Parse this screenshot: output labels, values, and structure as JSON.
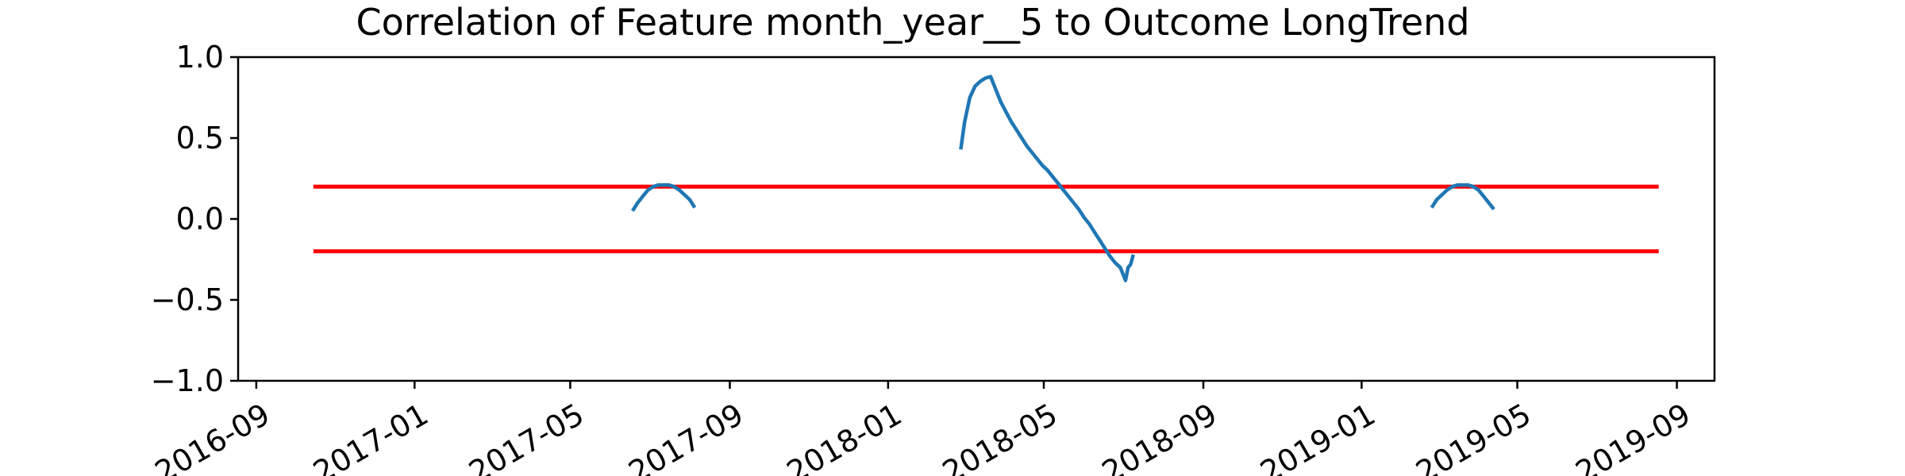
{
  "chart_data": {
    "type": "line",
    "title": "Correlation of Feature month_year__5 to Outcome LongTrend",
    "xlabel": "",
    "ylabel": "",
    "xlim": [
      "2016-08-18",
      "2019-09-30"
    ],
    "ylim": [
      -1.0,
      1.0
    ],
    "grid": false,
    "x_ticks": [
      "2016-09-01",
      "2017-01-01",
      "2017-05-01",
      "2017-09-01",
      "2018-01-01",
      "2018-05-01",
      "2018-09-01",
      "2019-01-01",
      "2019-05-01",
      "2019-09-01"
    ],
    "x_tick_labels": [
      "2016-09",
      "2017-01",
      "2017-05",
      "2017-09",
      "2018-01",
      "2018-05",
      "2018-09",
      "2019-01",
      "2019-05",
      "2019-09"
    ],
    "y_ticks": [
      -1.0,
      -0.5,
      0.0,
      0.5,
      1.0
    ],
    "y_tick_labels": [
      "−1.0",
      "−0.5",
      "0.0",
      "0.5",
      "1.0"
    ],
    "threshold_lines": [
      {
        "y": 0.2,
        "x_start": "2016-10-15",
        "x_end": "2019-08-18",
        "color": "#ff0000"
      },
      {
        "y": -0.2,
        "x_start": "2016-10-15",
        "x_end": "2019-08-18",
        "color": "#ff0000"
      }
    ],
    "series": [
      {
        "color": "#1f77b4",
        "segments": [
          {
            "x": [
              "2017-06-18",
              "2017-06-22",
              "2017-06-26",
              "2017-06-30",
              "2017-07-04",
              "2017-07-08",
              "2017-07-12",
              "2017-07-16",
              "2017-07-20",
              "2017-07-24",
              "2017-07-28",
              "2017-08-01",
              "2017-08-05"
            ],
            "y": [
              0.05,
              0.1,
              0.14,
              0.18,
              0.2,
              0.21,
              0.21,
              0.21,
              0.2,
              0.18,
              0.15,
              0.12,
              0.07
            ]
          },
          {
            "x": [
              "2018-02-26",
              "2018-03-01",
              "2018-03-05",
              "2018-03-09",
              "2018-03-13",
              "2018-03-17",
              "2018-03-21",
              "2018-03-25",
              "2018-03-29",
              "2018-04-02",
              "2018-04-06",
              "2018-04-10",
              "2018-04-14",
              "2018-04-18",
              "2018-04-22",
              "2018-04-26",
              "2018-04-30",
              "2018-05-04",
              "2018-05-08",
              "2018-05-12",
              "2018-05-16",
              "2018-05-20",
              "2018-05-24",
              "2018-05-28",
              "2018-06-01",
              "2018-06-05",
              "2018-06-09",
              "2018-06-13",
              "2018-06-17",
              "2018-06-21",
              "2018-06-25",
              "2018-06-29",
              "2018-07-03",
              "2018-07-05",
              "2018-07-07",
              "2018-07-09"
            ],
            "y": [
              0.43,
              0.6,
              0.75,
              0.82,
              0.85,
              0.87,
              0.88,
              0.8,
              0.72,
              0.66,
              0.6,
              0.55,
              0.5,
              0.45,
              0.41,
              0.37,
              0.33,
              0.3,
              0.26,
              0.22,
              0.18,
              0.14,
              0.1,
              0.06,
              0.01,
              -0.03,
              -0.08,
              -0.13,
              -0.18,
              -0.23,
              -0.27,
              -0.3,
              -0.38,
              -0.3,
              -0.28,
              -0.22
            ]
          },
          {
            "x": [
              "2019-02-24",
              "2019-02-28",
              "2019-03-04",
              "2019-03-08",
              "2019-03-12",
              "2019-03-16",
              "2019-03-20",
              "2019-03-24",
              "2019-03-28",
              "2019-04-01",
              "2019-04-05",
              "2019-04-09",
              "2019-04-13"
            ],
            "y": [
              0.07,
              0.12,
              0.15,
              0.18,
              0.2,
              0.21,
              0.21,
              0.21,
              0.2,
              0.18,
              0.14,
              0.1,
              0.06
            ]
          }
        ]
      }
    ]
  }
}
